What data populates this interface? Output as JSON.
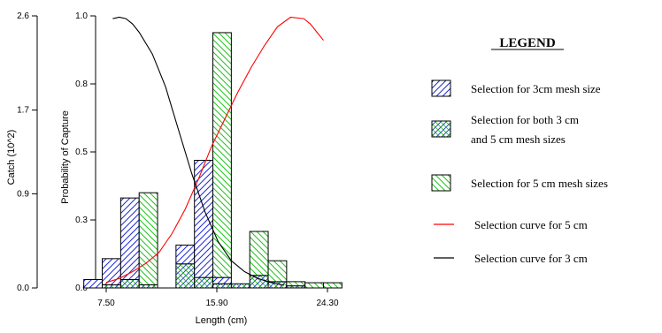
{
  "chart_data": {
    "type": "bar",
    "xlabel": "Length (cm)",
    "ylabel_left": "Catch (10^2)",
    "ylabel_right": "Probability of Capture",
    "x_ticks": [
      "7.50",
      "15.90",
      "24.30"
    ],
    "x_tick_values": [
      7.5,
      15.9,
      24.3
    ],
    "catch_ticks": [
      "2.6",
      "1.7",
      "0.9",
      "0.0"
    ],
    "catch_tick_values": [
      2.6,
      1.7,
      0.9,
      0.0
    ],
    "prob_ticks": [
      "1.0",
      "0.8",
      "0.5",
      "0.3",
      "0.0"
    ],
    "prob_tick_values": [
      1.0,
      0.75,
      0.5,
      0.25,
      0.0
    ],
    "catch_range": [
      0,
      2.6
    ],
    "prob_range": [
      0,
      1
    ],
    "x_range": [
      5.8,
      25.0
    ],
    "bin_width": 1.4,
    "bin_starts": [
      5.8,
      7.2,
      8.6,
      10.0,
      11.4,
      12.8,
      14.2,
      15.6,
      17.0,
      18.4,
      19.8,
      21.2,
      22.6,
      24.0
    ],
    "series": [
      {
        "name": "Selection for 3cm mesh size",
        "pattern": "hatch-blue",
        "values": [
          0.08,
          0.25,
          0.78,
          0.0,
          0.0,
          0.18,
          1.12,
          0.06,
          0.0,
          0.0,
          0.0,
          0.0,
          0.0,
          0.0
        ]
      },
      {
        "name": "Selection for both 3 cm and 5 cm mesh sizes",
        "pattern": "crosshatch",
        "values": [
          0.0,
          0.03,
          0.08,
          0.03,
          0.0,
          0.23,
          0.1,
          0.04,
          0.04,
          0.12,
          0.06,
          0.02,
          0.0,
          0.0
        ]
      },
      {
        "name": "Selection for 5 cm mesh sizes",
        "pattern": "hatch-green",
        "values": [
          0.0,
          0.0,
          0.0,
          0.88,
          0.0,
          0.0,
          0.0,
          2.34,
          0.0,
          0.42,
          0.2,
          0.04,
          0.05,
          0.05
        ]
      }
    ],
    "curves": [
      {
        "name": "Selection curve for 5 cm",
        "color": "#ff0000",
        "x": [
          7.5,
          8.5,
          9.5,
          10.5,
          11.5,
          12.5,
          13.5,
          14.5,
          15.5,
          16.5,
          17.5,
          18.5,
          19.5,
          20.5,
          21.5,
          22.5,
          23.0,
          23.5,
          24.0
        ],
        "y": [
          0.02,
          0.035,
          0.06,
          0.09,
          0.13,
          0.2,
          0.29,
          0.4,
          0.52,
          0.62,
          0.72,
          0.81,
          0.89,
          0.96,
          0.995,
          0.99,
          0.97,
          0.94,
          0.91
        ]
      },
      {
        "name": "Selection curve for 3 cm",
        "color": "#000000",
        "x": [
          8.0,
          8.5,
          9.0,
          9.5,
          10.0,
          11.0,
          12.0,
          13.0,
          14.0,
          15.0,
          16.0,
          17.0,
          18.0,
          19.0,
          20.0,
          21.0
        ],
        "y": [
          0.99,
          0.995,
          0.99,
          0.97,
          0.94,
          0.86,
          0.74,
          0.58,
          0.42,
          0.28,
          0.17,
          0.1,
          0.06,
          0.035,
          0.02,
          0.01
        ]
      }
    ],
    "legend": {
      "title": "LEGEND",
      "items": [
        {
          "lines": [
            "Selection for 3cm mesh size"
          ],
          "symbol": "hatch-blue"
        },
        {
          "lines": [
            "Selection for both 3 cm",
            "and 5 cm mesh sizes"
          ],
          "symbol": "crosshatch"
        },
        {
          "lines": [
            "Selection for 5 cm mesh sizes"
          ],
          "symbol": "hatch-green"
        },
        {
          "lines": [
            "Selection curve for 5 cm"
          ],
          "symbol": "line-red"
        },
        {
          "lines": [
            "Selection curve for 3 cm"
          ],
          "symbol": "line-black"
        }
      ]
    },
    "colors": {
      "hatch_blue": "#1f2bd6",
      "hatch_green": "#22c21e",
      "red_curve": "#ff0000",
      "black_curve": "#000000"
    },
    "grid": false
  }
}
